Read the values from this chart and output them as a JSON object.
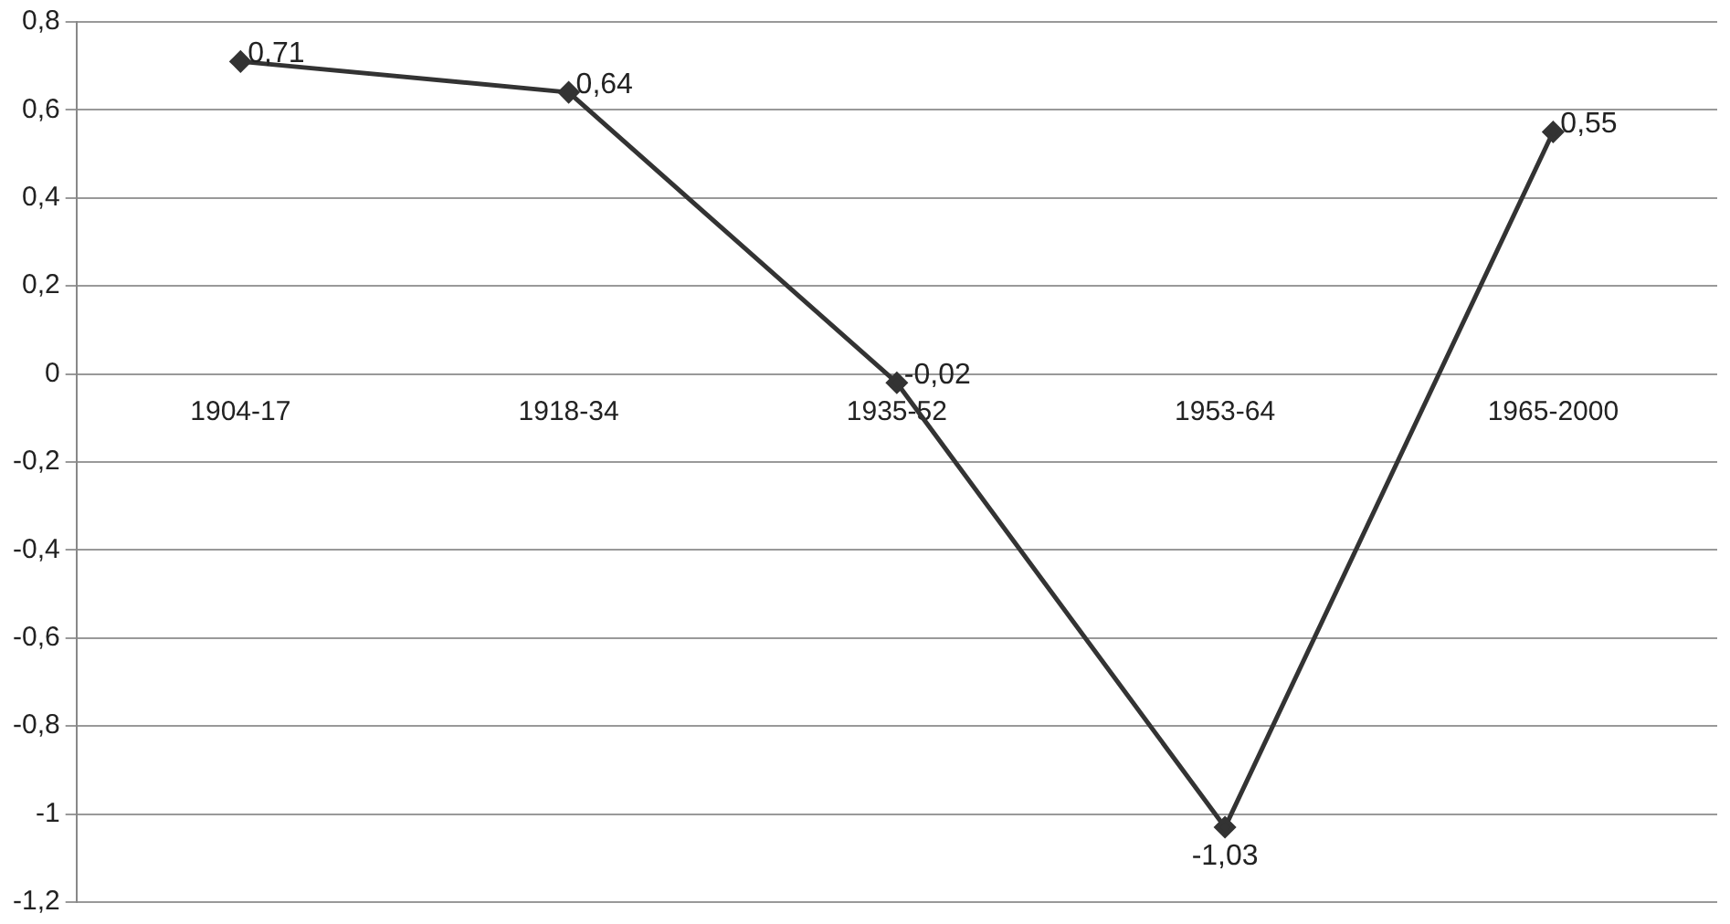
{
  "chart_data": {
    "type": "line",
    "categories": [
      "1904-17",
      "1918-34",
      "1935-52",
      "1953-64",
      "1965-2000"
    ],
    "series": [
      {
        "color": "#333333",
        "values": [
          0.71,
          0.64,
          -0.02,
          -1.03,
          0.55
        ],
        "value_labels": [
          "0,71",
          "0,64",
          "-0,02",
          "-1,03",
          "0,55"
        ]
      }
    ],
    "ylim": [
      -1.2,
      0.8
    ],
    "yticks": [
      {
        "value": 0.8,
        "label": "0,8"
      },
      {
        "value": 0.6,
        "label": "0,6"
      },
      {
        "value": 0.4,
        "label": "0,4"
      },
      {
        "value": 0.2,
        "label": "0,2"
      },
      0,
      {
        "value": -0.2,
        "label": "-0,2"
      },
      {
        "value": -0.4,
        "label": "-0,4"
      },
      {
        "value": -0.6,
        "label": "-0,6"
      },
      {
        "value": -0.8,
        "label": "-0,8"
      },
      -1,
      {
        "value": -1.2,
        "label": "-1,2"
      }
    ],
    "grid": "y",
    "legend": false,
    "marker": "diamond",
    "line_style": "solid"
  }
}
